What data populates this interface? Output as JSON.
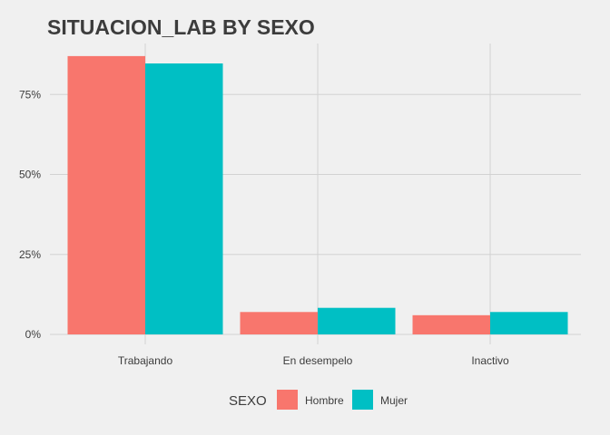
{
  "chart_data": {
    "type": "bar",
    "title": "SITUACION_LAB BY SEXO",
    "xlabel": "",
    "ylabel": "",
    "categories": [
      "Trabajando",
      "En desempelo",
      "Inactivo"
    ],
    "series": [
      {
        "name": "Hombre",
        "values": [
          0.87,
          0.07,
          0.06
        ],
        "color": "#f8766d"
      },
      {
        "name": "Mujer",
        "values": [
          0.847,
          0.083,
          0.07
        ],
        "color": "#00bfc4"
      }
    ],
    "ylim": [
      0,
      0.9
    ],
    "yticks": [
      0,
      0.25,
      0.5,
      0.75
    ],
    "ytick_labels": [
      "0%",
      "25%",
      "50%",
      "75%"
    ],
    "grid": true,
    "legend": {
      "title": "SEXO",
      "placement": "bottom"
    },
    "colors": {
      "background": "#f0f0f0",
      "grid": "#d2d2d2",
      "text": "#3c3c3c"
    }
  }
}
